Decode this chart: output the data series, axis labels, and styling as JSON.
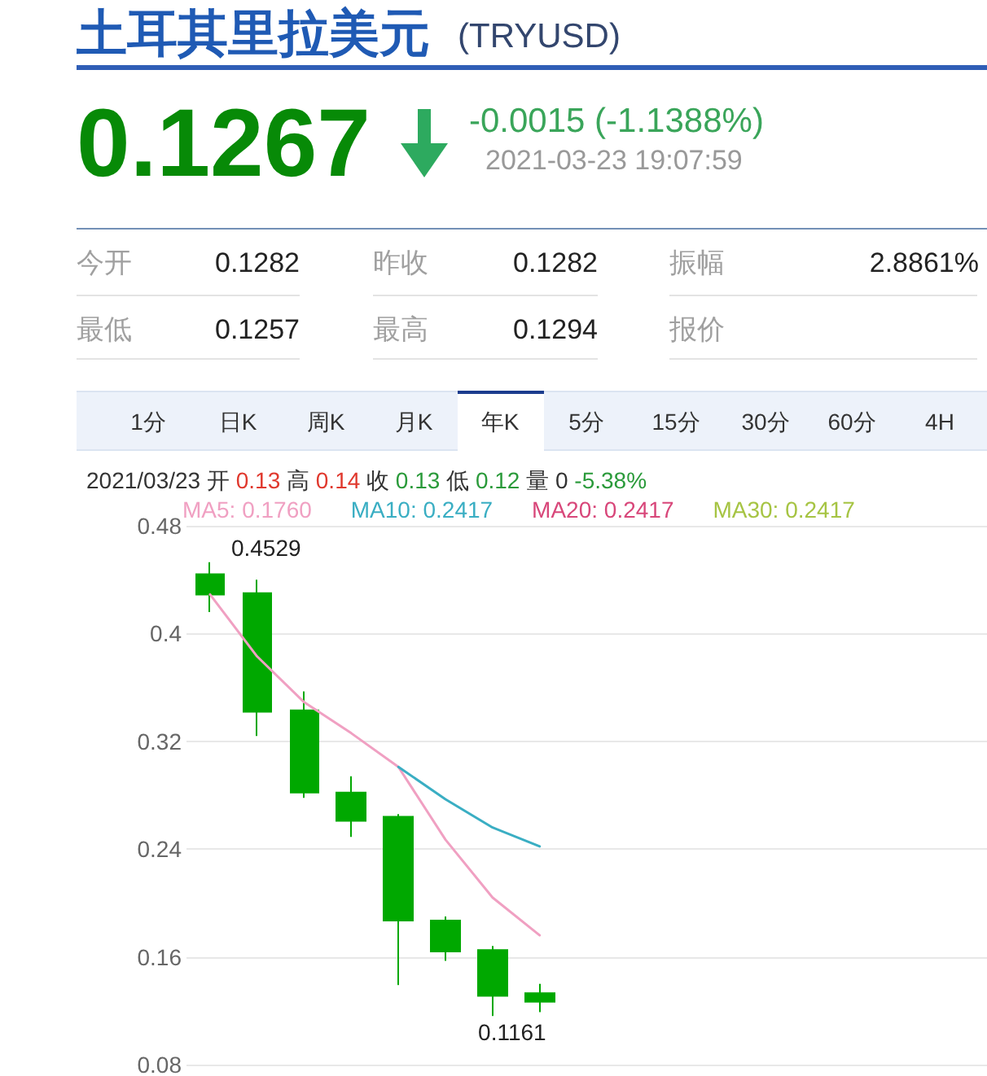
{
  "chart_data": {
    "type": "candlestick",
    "title": "土耳其里拉美元",
    "subtitle": "(TRYUSD)",
    "categories": [
      null,
      null,
      null,
      null,
      null,
      null,
      null,
      null,
      null,
      null,
      null,
      null,
      null,
      null,
      null,
      null,
      null
    ],
    "ohlc": [
      [
        0.444,
        0.4529,
        0.416,
        0.429
      ],
      [
        0.43,
        0.44,
        0.324,
        0.342
      ],
      [
        0.343,
        0.357,
        0.278,
        0.282
      ],
      [
        0.282,
        0.294,
        0.249,
        0.261
      ],
      [
        0.264,
        0.266,
        0.139,
        0.187
      ],
      [
        0.187,
        0.19,
        0.157,
        0.164
      ],
      [
        0.165,
        0.168,
        0.1161,
        0.131
      ],
      [
        0.133,
        0.14,
        0.119,
        0.1267
      ],
      null,
      null,
      null,
      null,
      null,
      null,
      null,
      null,
      null
    ],
    "color": "#00a800",
    "series": [
      {
        "type": "line",
        "name": "MA5: 0.1760",
        "color": "#f0a0c2",
        "values": [
          0.429,
          0.383,
          0.349,
          0.326,
          0.301,
          0.247,
          0.204,
          0.176,
          null,
          null,
          null,
          null,
          null,
          null,
          null,
          null,
          null
        ]
      },
      {
        "type": "line",
        "name": "MA10: 0.2417",
        "color": "#3aaec3",
        "values": [
          null,
          null,
          null,
          null,
          0.301,
          0.277,
          0.256,
          0.242,
          null,
          null,
          null,
          null,
          null,
          null,
          null,
          null,
          null
        ]
      },
      {
        "type": "line",
        "name": "MA20: 0.2417",
        "color": "#d8477a",
        "values": [
          null,
          null,
          null,
          null,
          null,
          null,
          null,
          null,
          null,
          null,
          null,
          null,
          null,
          null,
          null,
          null,
          null
        ]
      },
      {
        "type": "line",
        "name": "MA30: 0.2417",
        "color": "#a6c443",
        "values": [
          null,
          null,
          null,
          null,
          null,
          null,
          null,
          null,
          null,
          null,
          null,
          null,
          null,
          null,
          null,
          null,
          null
        ]
      }
    ],
    "ylim": [
      0.08,
      0.48
    ],
    "yticks": [
      0.08,
      0.16,
      0.24,
      0.32,
      0.4,
      0.48
    ],
    "grid": "y",
    "legend": "top",
    "tick_labels": "y",
    "marker": "none",
    "annotations": [
      "0.1267",
      "-0.0015 (-1.1388%)",
      "2021-03-23 19:07:59",
      "今开",
      "0.1282",
      "昨收",
      "0.1282",
      "振幅",
      "2.8861%",
      "最低",
      "0.1257",
      "最高",
      "0.1294",
      "报价",
      "1分",
      "日K",
      "周K",
      "月K",
      "年K",
      "5分",
      "15分",
      "30分",
      "60分",
      "4H",
      "2021/03/23 开 0.13 高 0.14 收 0.13 低 0.12 量 0 -5.38%",
      "0.4529",
      "0.1161"
    ]
  }
}
